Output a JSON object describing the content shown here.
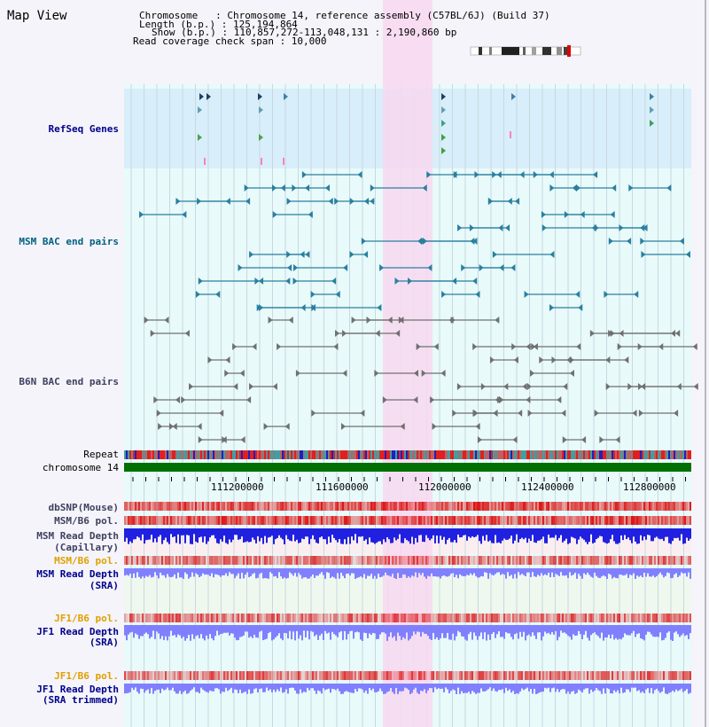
{
  "title": "Map View",
  "header": {
    "chromosome": "Chromosome   : Chromosome 14, reference assembly (C57BL/6J) (Build 37)",
    "length": "Length (b.p.) : 125,194,864",
    "show": "Show (b.p.) : 110,857,272-113,048,131 : 2,190,860 bp",
    "span": "Read coverage check span : 10,000"
  },
  "tracks": {
    "refseq": "RefSeq Genes",
    "msm_bac": "MSM BAC end pairs",
    "b6n_bac": "B6N BAC end pairs",
    "repeat": "Repeat",
    "chrom": "chromosome 14",
    "dbsnp": "dbSNP(Mouse)",
    "msm_pol1": "MSM/B6 pol.",
    "msm_depth1_a": "MSM Read Depth",
    "msm_depth1_b": "(Capillary)",
    "msm_pol2": "MSM/B6 pol.",
    "msm_depth2_a": "MSM Read Depth",
    "msm_depth2_b": "(SRA)",
    "jf1_pol1": "JF1/B6 pol.",
    "jf1_depth1_a": "JF1 Read Depth",
    "jf1_depth1_b": "(SRA)",
    "jf1_pol2": "JF1/B6 pol.",
    "jf1_depth2_a": "JF1 Read Depth",
    "jf1_depth2_b": "(SRA trimmed)"
  },
  "axis": {
    "ticks": [
      "111200000",
      "111600000",
      "112000000",
      "112400000",
      "112800000"
    ]
  },
  "colors": {
    "refseq_bg": "#d8eefa",
    "cyan_bg": "#e8fafa",
    "highlight": "#f8d8f0",
    "chrom_bar": "#007000",
    "label_blue": "#00008b",
    "label_teal": "#006080",
    "label_gray": "#404060",
    "label_orange": "#e0a000",
    "depth_capillary": "#2020e0",
    "depth_sra": "#8080ff"
  }
}
